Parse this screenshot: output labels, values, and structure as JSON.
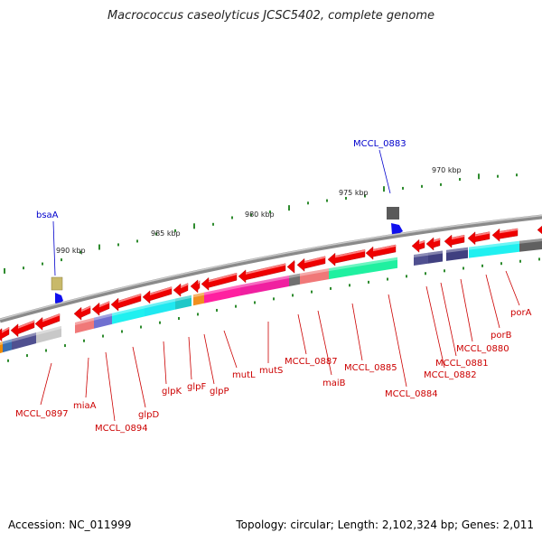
{
  "title": "Macrococcus caseolyticus JCSC5402, complete genome",
  "accession": "Accession: NC_011999",
  "summary": "Topology: circular; Length: 2,102,324 bp; Genes: 2,011",
  "colors": {
    "backbone": "#8a8a8a",
    "forward_label": "#0000cc",
    "reverse_label": "#cc0000",
    "tick": "#2e8b2e",
    "arrow_red": "#ee0000"
  },
  "scale_labels": [
    "990 kbp",
    "985 kbp",
    "980 kbp",
    "975 kbp",
    "970 kbp"
  ],
  "forward_genes": [
    "bsaA",
    "MCCL_0883"
  ],
  "reverse_genes": [
    "MCCL_0897",
    "miaA",
    "MCCL_0894",
    "glpD",
    "glpK",
    "glpF",
    "glpP",
    "mutL",
    "mutS",
    "MCCL_0887",
    "maiB",
    "MCCL_0885",
    "MCCL_0884",
    "MCCL_0882",
    "MCCL_0881",
    "MCCL_0880",
    "porB",
    "porA"
  ]
}
